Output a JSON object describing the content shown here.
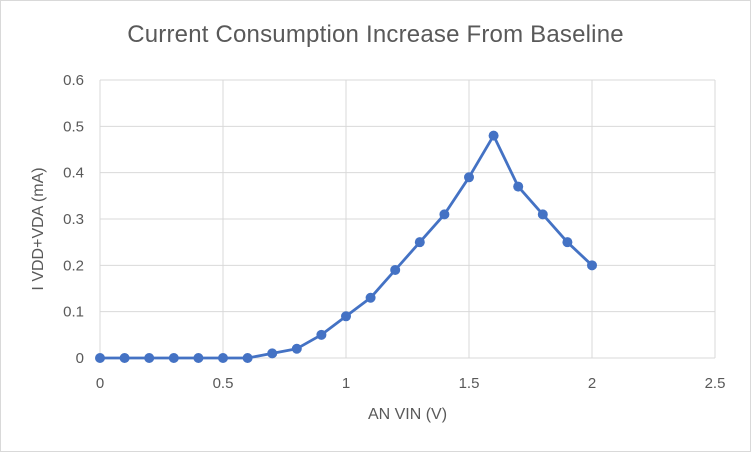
{
  "chart_data": {
    "type": "scatter",
    "title": "Current Consumption Increase From Baseline",
    "xlabel": "AN VIN (V)",
    "ylabel": "I VDD+VDA (mA)",
    "xlim": [
      0,
      2.5
    ],
    "ylim": [
      0,
      0.6
    ],
    "x_ticks": [
      "0",
      "0.5",
      "1",
      "1.5",
      "2",
      "2.5"
    ],
    "y_ticks": [
      "0",
      "0.1",
      "0.2",
      "0.3",
      "0.4",
      "0.5",
      "0.6"
    ],
    "x_tick_values": [
      0,
      0.5,
      1,
      1.5,
      2,
      2.5
    ],
    "y_tick_values": [
      0,
      0.1,
      0.2,
      0.3,
      0.4,
      0.5,
      0.6
    ],
    "grid": true,
    "legend": "none",
    "series": [
      {
        "color": "#4472c4",
        "marker": "circle",
        "line": "straight",
        "x": [
          0,
          0.1,
          0.2,
          0.3,
          0.4,
          0.5,
          0.6,
          0.7,
          0.8,
          0.9,
          1.0,
          1.1,
          1.2,
          1.3,
          1.4,
          1.5,
          1.6,
          1.7,
          1.8,
          1.9,
          2.0
        ],
        "y": [
          0,
          0,
          0,
          0,
          0,
          0,
          0,
          0.01,
          0.02,
          0.05,
          0.09,
          0.13,
          0.19,
          0.25,
          0.31,
          0.39,
          0.48,
          0.37,
          0.31,
          0.25,
          0.2
        ]
      }
    ]
  }
}
